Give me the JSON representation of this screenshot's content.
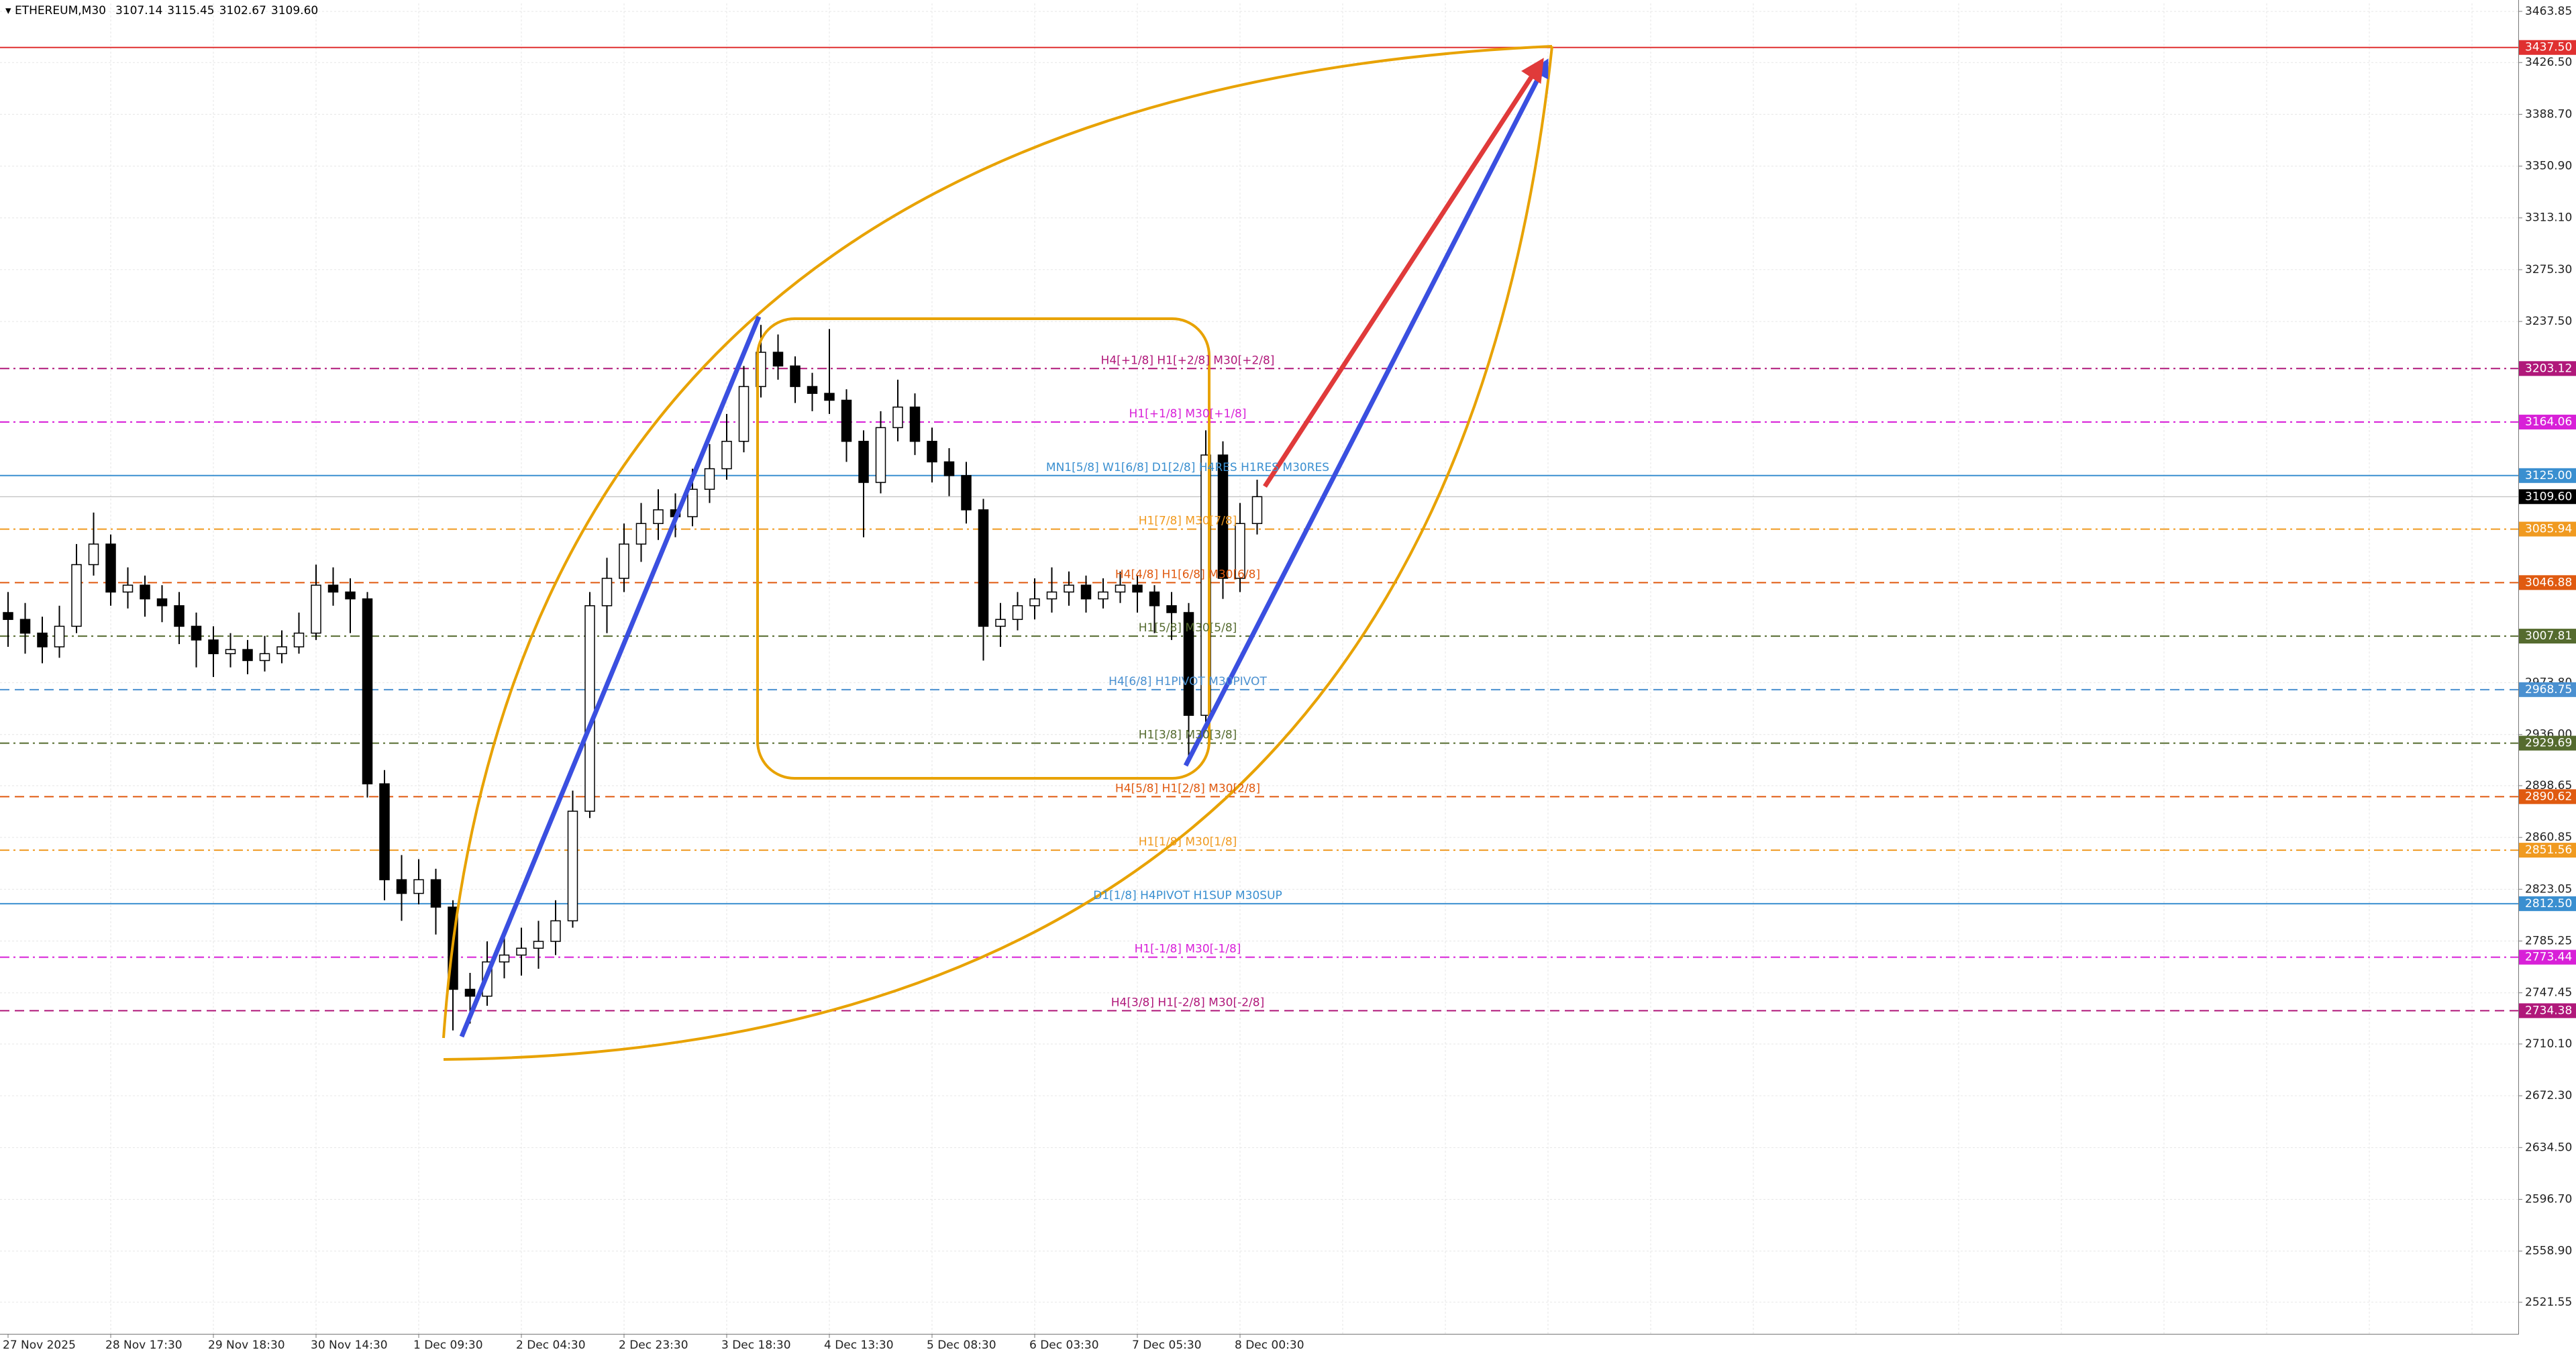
{
  "chart_data": {
    "type": "candlestick",
    "symbol": "ETHEREUM,M30",
    "header_prices": [
      "3107.14",
      "3115.45",
      "3102.67",
      "3109.60"
    ],
    "categories": [
      "27 Nov 2025",
      null,
      null,
      null,
      null,
      null,
      "28 Nov 17:30",
      null,
      null,
      null,
      null,
      null,
      "29 Nov 18:30",
      null,
      null,
      null,
      null,
      null,
      "30 Nov 14:30",
      null,
      null,
      null,
      null,
      null,
      "1 Dec 09:30",
      null,
      null,
      null,
      null,
      null,
      "2 Dec 04:30",
      null,
      null,
      null,
      null,
      null,
      "2 Dec 23:30",
      null,
      null,
      null,
      null,
      null,
      "3 Dec 18:30",
      null,
      null,
      null,
      null,
      null,
      "4 Dec 13:30",
      null,
      null,
      null,
      null,
      null,
      "5 Dec 08:30",
      null,
      null,
      null,
      null,
      null,
      "6 Dec 03:30",
      null,
      null,
      null,
      null,
      null,
      "7 Dec 05:30",
      null,
      null,
      null,
      null,
      null,
      "8 Dec 00:30",
      null
    ],
    "open": [
      3025,
      3020,
      3010,
      3000,
      3015,
      3060,
      3075,
      3040,
      3045,
      3035,
      3030,
      3015,
      3005,
      2995,
      2998,
      2990,
      2995,
      3000,
      3010,
      3045,
      3040,
      3035,
      2900,
      2830,
      2820,
      2830,
      2810,
      2750,
      2745,
      2770,
      2775,
      2780,
      2785,
      2800,
      2880,
      3030,
      3050,
      3075,
      3090,
      3100,
      3095,
      3115,
      3130,
      3150,
      3190,
      3215,
      3205,
      3190,
      3185,
      3180,
      3150,
      3120,
      3160,
      3175,
      3150,
      3135,
      3125,
      3100,
      3015,
      3020,
      3030,
      3035,
      3040,
      3045,
      3035,
      3040,
      3045,
      3040,
      3030,
      3025,
      2950,
      3140,
      3050,
      3090
    ],
    "high": [
      3040,
      3032,
      3022,
      3030,
      3075,
      3098,
      3082,
      3058,
      3052,
      3045,
      3040,
      3025,
      3015,
      3010,
      3005,
      3008,
      3012,
      3025,
      3060,
      3058,
      3050,
      3040,
      2910,
      2848,
      2845,
      2838,
      2815,
      2762,
      2785,
      2790,
      2795,
      2800,
      2815,
      2895,
      3040,
      3065,
      3090,
      3105,
      3115,
      3112,
      3130,
      3148,
      3170,
      3205,
      3235,
      3228,
      3212,
      3200,
      3232,
      3188,
      3158,
      3172,
      3195,
      3185,
      3160,
      3145,
      3135,
      3108,
      3032,
      3040,
      3050,
      3058,
      3055,
      3052,
      3050,
      3055,
      3052,
      3045,
      3040,
      3032,
      3158,
      3150,
      3105,
      3122
    ],
    "low": [
      3000,
      2995,
      2988,
      2992,
      3010,
      3052,
      3030,
      3028,
      3022,
      3018,
      3002,
      2985,
      2978,
      2985,
      2980,
      2982,
      2988,
      2995,
      3005,
      3030,
      3010,
      2890,
      2815,
      2800,
      2812,
      2790,
      2720,
      2725,
      2738,
      2758,
      2760,
      2765,
      2775,
      2795,
      2875,
      3010,
      3040,
      3062,
      3078,
      3080,
      3088,
      3105,
      3122,
      3142,
      3182,
      3195,
      3178,
      3172,
      3170,
      3135,
      3080,
      3112,
      3150,
      3140,
      3120,
      3110,
      3090,
      2990,
      3000,
      3012,
      3020,
      3025,
      3030,
      3025,
      3028,
      3032,
      3025,
      3010,
      3005,
      2920,
      2945,
      3035,
      3040,
      3082
    ],
    "close": [
      3020,
      3010,
      3000,
      3015,
      3060,
      3075,
      3040,
      3045,
      3035,
      3030,
      3015,
      3005,
      2995,
      2998,
      2990,
      2995,
      3000,
      3010,
      3045,
      3040,
      3035,
      2900,
      2830,
      2820,
      2830,
      2810,
      2750,
      2745,
      2770,
      2775,
      2780,
      2785,
      2800,
      2880,
      3030,
      3050,
      3075,
      3090,
      3100,
      3095,
      3115,
      3130,
      3150,
      3190,
      3215,
      3205,
      3190,
      3185,
      3180,
      3150,
      3120,
      3160,
      3175,
      3150,
      3135,
      3125,
      3100,
      3015,
      3020,
      3030,
      3035,
      3040,
      3045,
      3035,
      3040,
      3045,
      3040,
      3030,
      3025,
      2950,
      3140,
      3050,
      3090,
      3109.6
    ],
    "ylim": [
      2498.5,
      3469.7
    ],
    "yticks": [
      {
        "value": 3463.85,
        "label": "3463.85"
      },
      {
        "value": 3426.5,
        "label": "3426.50"
      },
      {
        "value": 3388.7,
        "label": "3388.70"
      },
      {
        "value": 3350.9,
        "label": "3350.90"
      },
      {
        "value": 3313.1,
        "label": "3313.10"
      },
      {
        "value": 3275.3,
        "label": "3275.30"
      },
      {
        "value": 3237.5,
        "label": "3237.50"
      },
      {
        "value": 2973.8,
        "label": "2973.80"
      },
      {
        "value": 2936,
        "label": "2936.00"
      },
      {
        "value": 2898.65,
        "label": "2898.65"
      },
      {
        "value": 2860.85,
        "label": "2860.85"
      },
      {
        "value": 2823.05,
        "label": "2823.05"
      },
      {
        "value": 2785.25,
        "label": "2785.25"
      },
      {
        "value": 2747.45,
        "label": "2747.45"
      },
      {
        "value": 2710.1,
        "label": "2710.10"
      },
      {
        "value": 2672.3,
        "label": "2672.30"
      },
      {
        "value": 2634.5,
        "label": "2634.50"
      },
      {
        "value": 2596.7,
        "label": "2596.70"
      },
      {
        "value": 2558.9,
        "label": "2558.90"
      },
      {
        "value": 2521.55,
        "label": "2521.55"
      }
    ],
    "grid": true,
    "current_price": {
      "value": 3109.6,
      "label": "3109.60"
    },
    "levels": [
      {
        "value": 3437.5,
        "price_label": "3437.50",
        "color": "#e03030",
        "style": "solid"
      },
      {
        "value": 3203.12,
        "price_label": "3203.12",
        "text": "H4[+1/8] H1[+2/8] M30[+2/8]",
        "color": "#b0187a",
        "style": "dashdot"
      },
      {
        "value": 3164.06,
        "price_label": "3164.06",
        "text": "H1[+1/8] M30[+1/8]",
        "color": "#d820d8",
        "style": "dashdot"
      },
      {
        "value": 3125,
        "price_label": "3125.00",
        "text": "MN1[5/8] W1[6/8] D1[2/8] H4RES H1RES M30RES",
        "color": "#3a8fd0",
        "style": "solid"
      },
      {
        "value": 3085.94,
        "price_label": "3085.94",
        "text": "H1[7/8] M30[7/8]",
        "color": "#f09a20",
        "style": "dashdot"
      },
      {
        "value": 3046.88,
        "price_label": "3046.88",
        "text": "H4[4/8] H1[6/8] M30[6/8]",
        "color": "#e05a10",
        "style": "dash"
      },
      {
        "value": 3007.81,
        "price_label": "3007.81",
        "text": "H1[5/8] M30[5/8]",
        "color": "#556b2f",
        "style": "dashdot"
      },
      {
        "value": 2968.75,
        "price_label": "2968.75",
        "text": "H4[6/8] H1PIVOT M30PIVOT",
        "color": "#4a90d0",
        "style": "dash"
      },
      {
        "value": 2929.69,
        "price_label": "2929.69",
        "text": "H1[3/8] M30[3/8]",
        "color": "#556b2f",
        "style": "dashdot"
      },
      {
        "value": 2890.62,
        "price_label": "2890.62",
        "text": "H4[5/8] H1[2/8] M30[2/8]",
        "color": "#e05a10",
        "style": "dash"
      },
      {
        "value": 2851.56,
        "price_label": "2851.56",
        "text": "H1[1/8] M30[1/8]",
        "color": "#f09a20",
        "style": "dashdot"
      },
      {
        "value": 2812.5,
        "price_label": "2812.50",
        "text": "D1[1/8] H4PIVOT H1SUP M30SUP",
        "color": "#3a8fd0",
        "style": "solid"
      },
      {
        "value": 2773.44,
        "price_label": "2773.44",
        "text": "H1[-1/8] M30[-1/8]",
        "color": "#d820d8",
        "style": "dashdot"
      },
      {
        "value": 2734.38,
        "price_label": "2734.38",
        "text": "H4[3/8] H1[-2/8] M30[-2/8]",
        "color": "#b0187a",
        "style": "dash"
      }
    ]
  }
}
